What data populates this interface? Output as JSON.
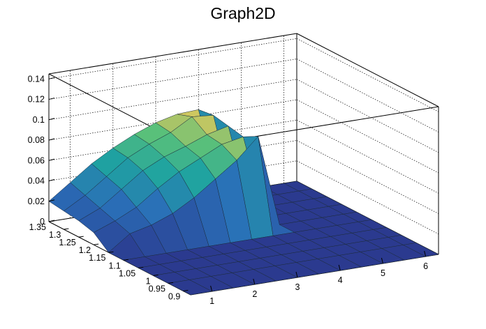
{
  "chart_data": {
    "type": "surface",
    "title": "Graph2D",
    "xlabel": "",
    "ylabel": "",
    "zlabel": "",
    "x_range": [
      0.5,
      6.3
    ],
    "y_range": [
      0.875,
      1.35
    ],
    "z_range": [
      0,
      0.145
    ],
    "x_ticks": [
      "1",
      "2",
      "3",
      "4",
      "5",
      "6"
    ],
    "y_ticks": [
      "1.35",
      "1.3",
      "1.25",
      "1.2",
      "1.15",
      "1.1",
      "1.05",
      "1",
      "0.95",
      "0.9"
    ],
    "z_ticks": [
      "0",
      "0.02",
      "0.04",
      "0.06",
      "0.08",
      "0.1",
      "0.12",
      "0.14"
    ],
    "grid": true,
    "colormap": "viridis-like (blue → green → yellow)",
    "surface_x": [
      0.5,
      1.0,
      1.5,
      2.0,
      2.5,
      3.0,
      3.5,
      4.0,
      4.5,
      5.0,
      5.5,
      6.0,
      6.3
    ],
    "surface_y": [
      0.875,
      0.95,
      1.0,
      1.05,
      1.1,
      1.15,
      1.2,
      1.25,
      1.3,
      1.35
    ],
    "surface_z": [
      [
        0.0,
        0.0,
        0.0,
        0.0,
        0.0,
        0.0,
        0.0,
        0.0,
        0.0,
        0.0,
        0.0,
        0.0,
        0.0
      ],
      [
        0.0,
        0.0,
        0.0,
        0.0,
        0.0,
        0.0,
        0.0,
        0.0,
        0.0,
        0.0,
        0.0,
        0.0,
        0.0
      ],
      [
        0.0,
        0.0,
        0.0,
        0.0,
        0.0,
        0.0,
        0.0,
        0.0,
        0.0,
        0.0,
        0.0,
        0.0,
        0.0
      ],
      [
        0.0,
        0.0,
        0.0,
        0.0,
        0.0,
        0.0,
        0.0,
        0.0,
        0.0,
        0.0,
        0.0,
        0.0,
        0.0
      ],
      [
        0.0,
        0.0,
        0.0,
        0.0,
        0.0,
        0.0,
        0.0,
        0.0,
        0.0,
        0.0,
        0.0,
        0.0,
        0.0
      ],
      [
        0.0,
        0.015,
        0.02,
        0.028,
        0.04,
        0.055,
        0.07,
        0.09,
        0.0,
        0.0,
        0.0,
        0.0,
        0.0
      ],
      [
        0.012,
        0.02,
        0.03,
        0.045,
        0.058,
        0.068,
        0.078,
        0.082,
        0.0,
        0.0,
        0.0,
        0.0,
        0.0
      ],
      [
        0.016,
        0.025,
        0.04,
        0.055,
        0.065,
        0.072,
        0.08,
        0.085,
        0.0,
        0.0,
        0.0,
        0.0,
        0.0
      ],
      [
        0.018,
        0.03,
        0.045,
        0.06,
        0.07,
        0.078,
        0.09,
        0.088,
        0.0,
        0.0,
        0.0,
        0.0,
        0.0
      ],
      [
        0.02,
        0.035,
        0.05,
        0.062,
        0.072,
        0.08,
        0.085,
        0.086,
        0.0,
        0.0,
        0.0,
        0.0,
        0.0
      ]
    ]
  }
}
